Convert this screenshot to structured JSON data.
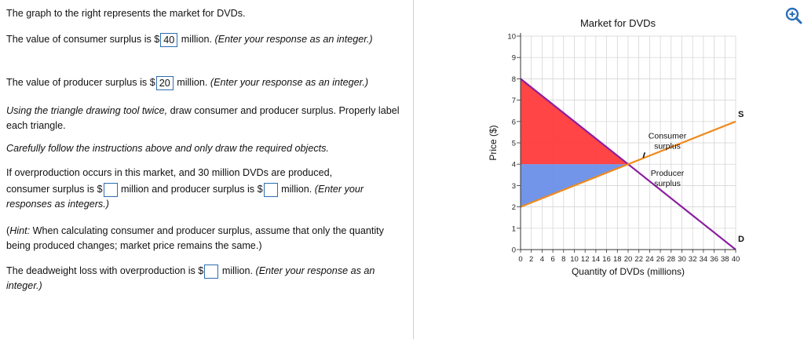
{
  "question": {
    "intro": "The graph to the right represents the market for DVDs.",
    "cs_prefix": "The value of consumer surplus is $",
    "cs_value": "40",
    "cs_suffix": " million. ",
    "cs_hint": "(Enter your response as an integer.)",
    "ps_prefix": "The value of producer surplus is $",
    "ps_value": "20",
    "ps_suffix": " million. ",
    "ps_hint": "(Enter your response as an integer.)",
    "draw_instr_italic": "Using the triangle drawing tool twice,",
    "draw_instr_rest": " draw consumer and producer surplus. Properly label each triangle.",
    "careful": "Carefully follow the instructions above and only draw the required objects.",
    "over_line1": "If overproduction occurs in this market, and 30 million DVDs are produced,",
    "over_cs_prefix": "consumer surplus is $",
    "over_cs_value": "",
    "over_mid": " million and producer surplus is $",
    "over_ps_value": "",
    "over_suffix": " million. ",
    "over_hint": "(Enter your responses as integers.)",
    "hint_label": "Hint:",
    "hint_text": " When calculating consumer and producer surplus, assume that only the quantity being produced changes; market price remains the same.)",
    "hint_open": "(",
    "dwl_prefix": "The deadweight loss with overproduction is $",
    "dwl_value": "",
    "dwl_suffix": " million. ",
    "dwl_hint": "(Enter your response as an integer.)"
  },
  "toolbar": {
    "zoom_icon": "zoom-in-icon",
    "zoom_color": "#2a6fb8"
  },
  "chart_data": {
    "type": "line",
    "title": "Market for DVDs",
    "xlabel": "Quantity of DVDs (millions)",
    "ylabel": "Price ($)",
    "xlim": [
      0,
      40
    ],
    "ylim": [
      0,
      10
    ],
    "xticks": [
      0,
      2,
      4,
      6,
      8,
      10,
      12,
      14,
      16,
      18,
      20,
      22,
      24,
      26,
      28,
      30,
      32,
      34,
      36,
      38,
      40
    ],
    "yticks": [
      0,
      1,
      2,
      3,
      4,
      5,
      6,
      7,
      8,
      9,
      10
    ],
    "grid": true,
    "series": [
      {
        "name": "D",
        "color": "#8b1fa0",
        "points": [
          [
            0,
            8
          ],
          [
            40,
            0
          ]
        ]
      },
      {
        "name": "S",
        "color": "#f08a1c",
        "points": [
          [
            0,
            2
          ],
          [
            40,
            6
          ]
        ]
      }
    ],
    "equilibrium": {
      "x": 20,
      "y": 4
    },
    "consumer_surplus_triangle": {
      "label": "Consumer surplus",
      "color": "#ff3b3b",
      "points": [
        [
          0,
          8
        ],
        [
          0,
          4
        ],
        [
          20,
          4
        ]
      ]
    },
    "producer_surplus_triangle": {
      "label": "Producer surplus",
      "color": "#6b8fe8",
      "points": [
        [
          0,
          4
        ],
        [
          0,
          2
        ],
        [
          20,
          4
        ]
      ]
    }
  }
}
